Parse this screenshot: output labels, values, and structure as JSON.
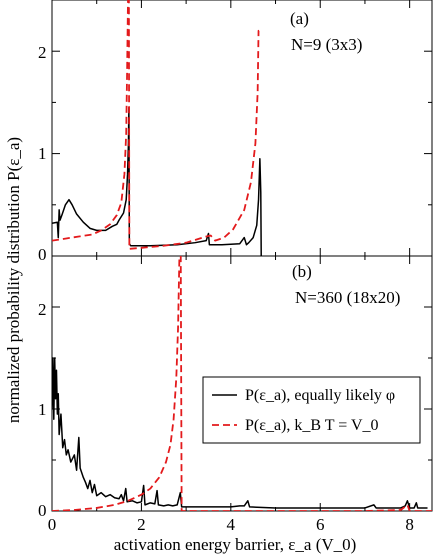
{
  "chart_data": {
    "type": "line",
    "ylabel": "normalized probability distribution P(ε_a)",
    "xlabel": "activation energy barrier, ε_a (V_0)",
    "xlim": [
      0,
      8.5
    ],
    "xticks": [
      "0",
      "2",
      "4",
      "6",
      "8"
    ],
    "xtick_values": [
      0,
      2,
      4,
      6,
      8
    ],
    "legend": {
      "placement": "middle-right of panel (b)",
      "entries": [
        {
          "label": "P(ε_a), equally likely φ",
          "color": "#000000",
          "style": "solid"
        },
        {
          "label": "P(ε_a), k_B T = V_0",
          "color": "#e31a1c",
          "style": "dashed"
        }
      ]
    },
    "panels": [
      {
        "id": "a",
        "panel_label": "(a)",
        "subtitle": "N=9 (3x3)",
        "ylim": [
          0,
          2.5
        ],
        "yticks": [
          "0",
          "1",
          "2"
        ],
        "ytick_values": [
          0,
          1,
          2
        ],
        "series": [
          {
            "name": "P(ε_a), equally likely φ",
            "color": "#000000",
            "style": "solid",
            "points": [
              [
                0.0,
                0.32
              ],
              [
                0.12,
                0.33
              ],
              [
                0.14,
                0.18
              ],
              [
                0.16,
                0.45
              ],
              [
                0.18,
                0.35
              ],
              [
                0.23,
                0.41
              ],
              [
                0.3,
                0.5
              ],
              [
                0.38,
                0.55
              ],
              [
                0.45,
                0.5
              ],
              [
                0.55,
                0.41
              ],
              [
                0.7,
                0.33
              ],
              [
                0.85,
                0.27
              ],
              [
                1.0,
                0.25
              ],
              [
                1.2,
                0.25
              ],
              [
                1.35,
                0.29
              ],
              [
                1.45,
                0.31
              ],
              [
                1.5,
                0.35
              ],
              [
                1.6,
                0.42
              ],
              [
                1.66,
                0.55
              ],
              [
                1.69,
                0.8
              ],
              [
                1.71,
                1.1
              ],
              [
                1.72,
                1.45
              ],
              [
                1.73,
                0.12
              ],
              [
                1.76,
                0.1
              ],
              [
                2.2,
                0.1
              ],
              [
                2.8,
                0.11
              ],
              [
                3.2,
                0.13
              ],
              [
                3.45,
                0.15
              ],
              [
                3.5,
                0.22
              ],
              [
                3.52,
                0.11
              ],
              [
                3.8,
                0.11
              ],
              [
                4.2,
                0.12
              ],
              [
                4.3,
                0.18
              ],
              [
                4.35,
                0.11
              ],
              [
                4.4,
                0.13
              ],
              [
                4.5,
                0.18
              ],
              [
                4.58,
                0.3
              ],
              [
                4.62,
                0.55
              ],
              [
                4.65,
                0.95
              ],
              [
                4.67,
                0.62
              ],
              [
                4.68,
                0.0
              ]
            ]
          },
          {
            "name": "P(ε_a), k_B T = V_0",
            "color": "#e31a1c",
            "style": "dashed",
            "points": [
              [
                0.0,
                0.15
              ],
              [
                0.3,
                0.17
              ],
              [
                0.6,
                0.19
              ],
              [
                0.9,
                0.21
              ],
              [
                1.1,
                0.25
              ],
              [
                1.3,
                0.31
              ],
              [
                1.45,
                0.4
              ],
              [
                1.55,
                0.52
              ],
              [
                1.62,
                0.8
              ],
              [
                1.66,
                1.2
              ],
              [
                1.68,
                1.8
              ],
              [
                1.7,
                2.5
              ],
              [
                1.72,
                2.5
              ],
              [
                1.73,
                0.07
              ],
              [
                2.0,
                0.08
              ],
              [
                2.5,
                0.1
              ],
              [
                3.0,
                0.13
              ],
              [
                3.45,
                0.19
              ],
              [
                3.55,
                0.2
              ],
              [
                3.65,
                0.15
              ],
              [
                3.85,
                0.18
              ],
              [
                4.05,
                0.26
              ],
              [
                4.3,
                0.45
              ],
              [
                4.45,
                0.72
              ],
              [
                4.55,
                1.1
              ],
              [
                4.6,
                1.6
              ],
              [
                4.62,
                2.2
              ],
              [
                4.63,
                2.2
              ]
            ]
          }
        ]
      },
      {
        "id": "b",
        "panel_label": "(b)",
        "subtitle": "N=360 (18x20)",
        "ylim": [
          0,
          2.5
        ],
        "yticks": [
          "0",
          "1",
          "2"
        ],
        "ytick_values": [
          0,
          1,
          2
        ],
        "series": [
          {
            "name": "P(ε_a), equally likely φ",
            "color": "#000000",
            "style": "solid",
            "points": [
              [
                0.0,
                1.0
              ],
              [
                0.02,
                1.5
              ],
              [
                0.04,
                0.9
              ],
              [
                0.06,
                1.5
              ],
              [
                0.08,
                1.1
              ],
              [
                0.1,
                1.38
              ],
              [
                0.12,
                0.95
              ],
              [
                0.14,
                1.15
              ],
              [
                0.16,
                0.75
              ],
              [
                0.2,
                0.95
              ],
              [
                0.24,
                0.62
              ],
              [
                0.28,
                0.7
              ],
              [
                0.32,
                0.55
              ],
              [
                0.36,
                0.6
              ],
              [
                0.42,
                0.48
              ],
              [
                0.5,
                0.55
              ],
              [
                0.55,
                0.4
              ],
              [
                0.6,
                0.72
              ],
              [
                0.63,
                0.42
              ],
              [
                0.7,
                0.33
              ],
              [
                0.75,
                0.28
              ],
              [
                0.8,
                0.22
              ],
              [
                0.85,
                0.3
              ],
              [
                0.9,
                0.18
              ],
              [
                0.95,
                0.26
              ],
              [
                1.0,
                0.15
              ],
              [
                1.1,
                0.18
              ],
              [
                1.2,
                0.14
              ],
              [
                1.3,
                0.16
              ],
              [
                1.4,
                0.13
              ],
              [
                1.5,
                0.12
              ],
              [
                1.55,
                0.16
              ],
              [
                1.6,
                0.1
              ],
              [
                1.65,
                0.22
              ],
              [
                1.68,
                0.09
              ],
              [
                1.8,
                0.1
              ],
              [
                1.9,
                0.08
              ],
              [
                2.0,
                0.09
              ],
              [
                2.05,
                0.25
              ],
              [
                2.08,
                0.06
              ],
              [
                2.2,
                0.08
              ],
              [
                2.3,
                0.07
              ],
              [
                2.35,
                0.2
              ],
              [
                2.38,
                0.06
              ],
              [
                2.5,
                0.05
              ],
              [
                2.6,
                0.06
              ],
              [
                2.7,
                0.05
              ],
              [
                2.8,
                0.06
              ],
              [
                2.87,
                0.18
              ],
              [
                2.9,
                0.04
              ],
              [
                3.2,
                0.04
              ],
              [
                3.6,
                0.04
              ],
              [
                4.0,
                0.04
              ],
              [
                4.2,
                0.05
              ],
              [
                4.3,
                0.05
              ],
              [
                4.38,
                0.1
              ],
              [
                4.42,
                0.04
              ],
              [
                5.0,
                0.03
              ],
              [
                5.5,
                0.03
              ],
              [
                6.0,
                0.03
              ],
              [
                6.5,
                0.03
              ],
              [
                7.0,
                0.03
              ],
              [
                7.2,
                0.06
              ],
              [
                7.25,
                0.03
              ],
              [
                7.5,
                0.03
              ],
              [
                7.8,
                0.03
              ],
              [
                7.9,
                0.05
              ],
              [
                7.95,
                0.1
              ],
              [
                8.0,
                0.03
              ],
              [
                8.1,
                0.03
              ],
              [
                8.15,
                0.08
              ],
              [
                8.18,
                0.03
              ],
              [
                8.4,
                0.03
              ]
            ]
          },
          {
            "name": "P(ε_a), k_B T = V_0",
            "color": "#e31a1c",
            "style": "dashed",
            "points": [
              [
                0.0,
                0.0
              ],
              [
                0.5,
                0.01
              ],
              [
                1.0,
                0.03
              ],
              [
                1.4,
                0.06
              ],
              [
                1.7,
                0.1
              ],
              [
                2.0,
                0.16
              ],
              [
                2.2,
                0.22
              ],
              [
                2.4,
                0.33
              ],
              [
                2.55,
                0.48
              ],
              [
                2.65,
                0.65
              ],
              [
                2.72,
                0.9
              ],
              [
                2.78,
                1.3
              ],
              [
                2.82,
                1.8
              ],
              [
                2.85,
                2.5
              ],
              [
                2.88,
                2.5
              ],
              [
                2.9,
                0.0
              ],
              [
                3.5,
                0.0
              ],
              [
                5.0,
                0.0
              ],
              [
                6.0,
                0.0
              ],
              [
                7.0,
                0.0
              ],
              [
                7.8,
                0.01
              ],
              [
                7.95,
                0.06
              ],
              [
                8.0,
                0.0
              ],
              [
                8.5,
                0.0
              ]
            ]
          }
        ]
      }
    ]
  }
}
